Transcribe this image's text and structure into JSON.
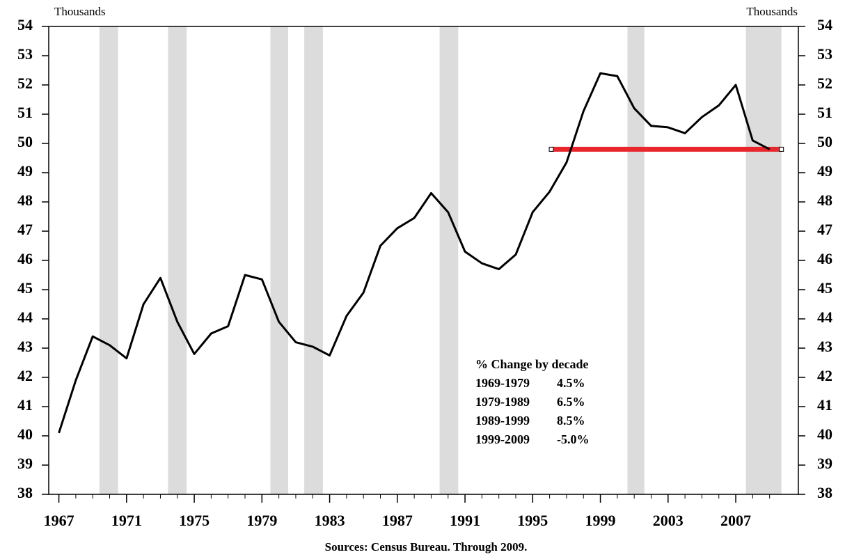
{
  "chart_data": {
    "type": "line",
    "y_unit_left": "Thousands",
    "y_unit_right": "Thousands",
    "source": "Sources: Census Bureau.  Through  2009.",
    "x": [
      1967,
      1968,
      1969,
      1970,
      1971,
      1972,
      1973,
      1974,
      1975,
      1976,
      1977,
      1978,
      1979,
      1980,
      1981,
      1982,
      1983,
      1984,
      1985,
      1986,
      1987,
      1988,
      1989,
      1990,
      1991,
      1992,
      1993,
      1994,
      1995,
      1996,
      1997,
      1998,
      1999,
      2000,
      2001,
      2002,
      2003,
      2004,
      2005,
      2006,
      2007,
      2008,
      2009
    ],
    "series": [
      {
        "color": "#000000",
        "values": [
          40.1,
          41.9,
          43.4,
          43.1,
          42.65,
          44.5,
          45.4,
          43.9,
          42.8,
          43.5,
          43.75,
          45.5,
          45.35,
          43.9,
          43.2,
          43.05,
          42.75,
          44.1,
          44.9,
          46.5,
          47.1,
          47.45,
          48.3,
          47.65,
          46.3,
          45.9,
          45.7,
          46.2,
          47.65,
          48.35,
          49.35,
          51.1,
          52.4,
          52.3,
          51.2,
          50.6,
          50.55,
          50.35,
          50.9,
          51.3,
          52.0,
          50.1,
          49.8
        ]
      }
    ],
    "xlim": [
      1966.4,
      2010.7
    ],
    "xticks": [
      1967,
      1971,
      1975,
      1979,
      1983,
      1987,
      1991,
      1995,
      1999,
      2003,
      2007
    ],
    "ylim": [
      38,
      54
    ],
    "yticks": [
      38,
      39,
      40,
      41,
      42,
      43,
      44,
      45,
      46,
      47,
      48,
      49,
      50,
      51,
      52,
      53,
      54
    ],
    "y2lim": [
      38,
      54
    ],
    "y2ticks": [
      38,
      39,
      40,
      41,
      42,
      43,
      44,
      45,
      46,
      47,
      48,
      49,
      50,
      51,
      52,
      53,
      54
    ],
    "shaded_periods": {
      "color": "#dcdcdc",
      "ranges": [
        [
          1969.4,
          1970.5
        ],
        [
          1973.45,
          1974.55
        ],
        [
          1979.5,
          1980.55
        ],
        [
          1981.5,
          1982.6
        ],
        [
          1989.5,
          1990.6
        ],
        [
          2000.6,
          2001.6
        ],
        [
          2007.6,
          2009.7
        ]
      ]
    },
    "reference_line": {
      "color": "#e8262b",
      "x": [
        1996.1,
        2009.7
      ],
      "value": 49.8
    },
    "annotation": {
      "title": "% Change by decade",
      "rows": [
        [
          "1969-1979",
          "4.5%"
        ],
        [
          "1979-1989",
          "6.5%"
        ],
        [
          "1989-1999",
          "8.5%"
        ],
        [
          "1999-2009",
          "-5.0%"
        ]
      ]
    }
  }
}
